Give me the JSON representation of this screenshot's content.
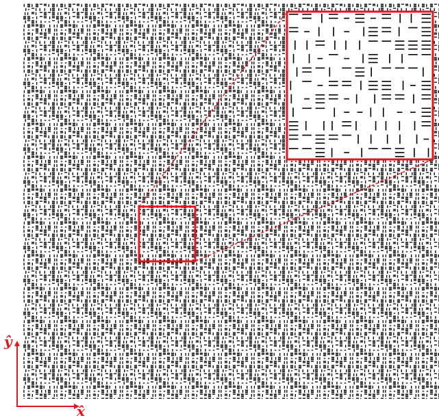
{
  "axes": {
    "x_label": "x̂",
    "y_label": "ŷ"
  }
}
